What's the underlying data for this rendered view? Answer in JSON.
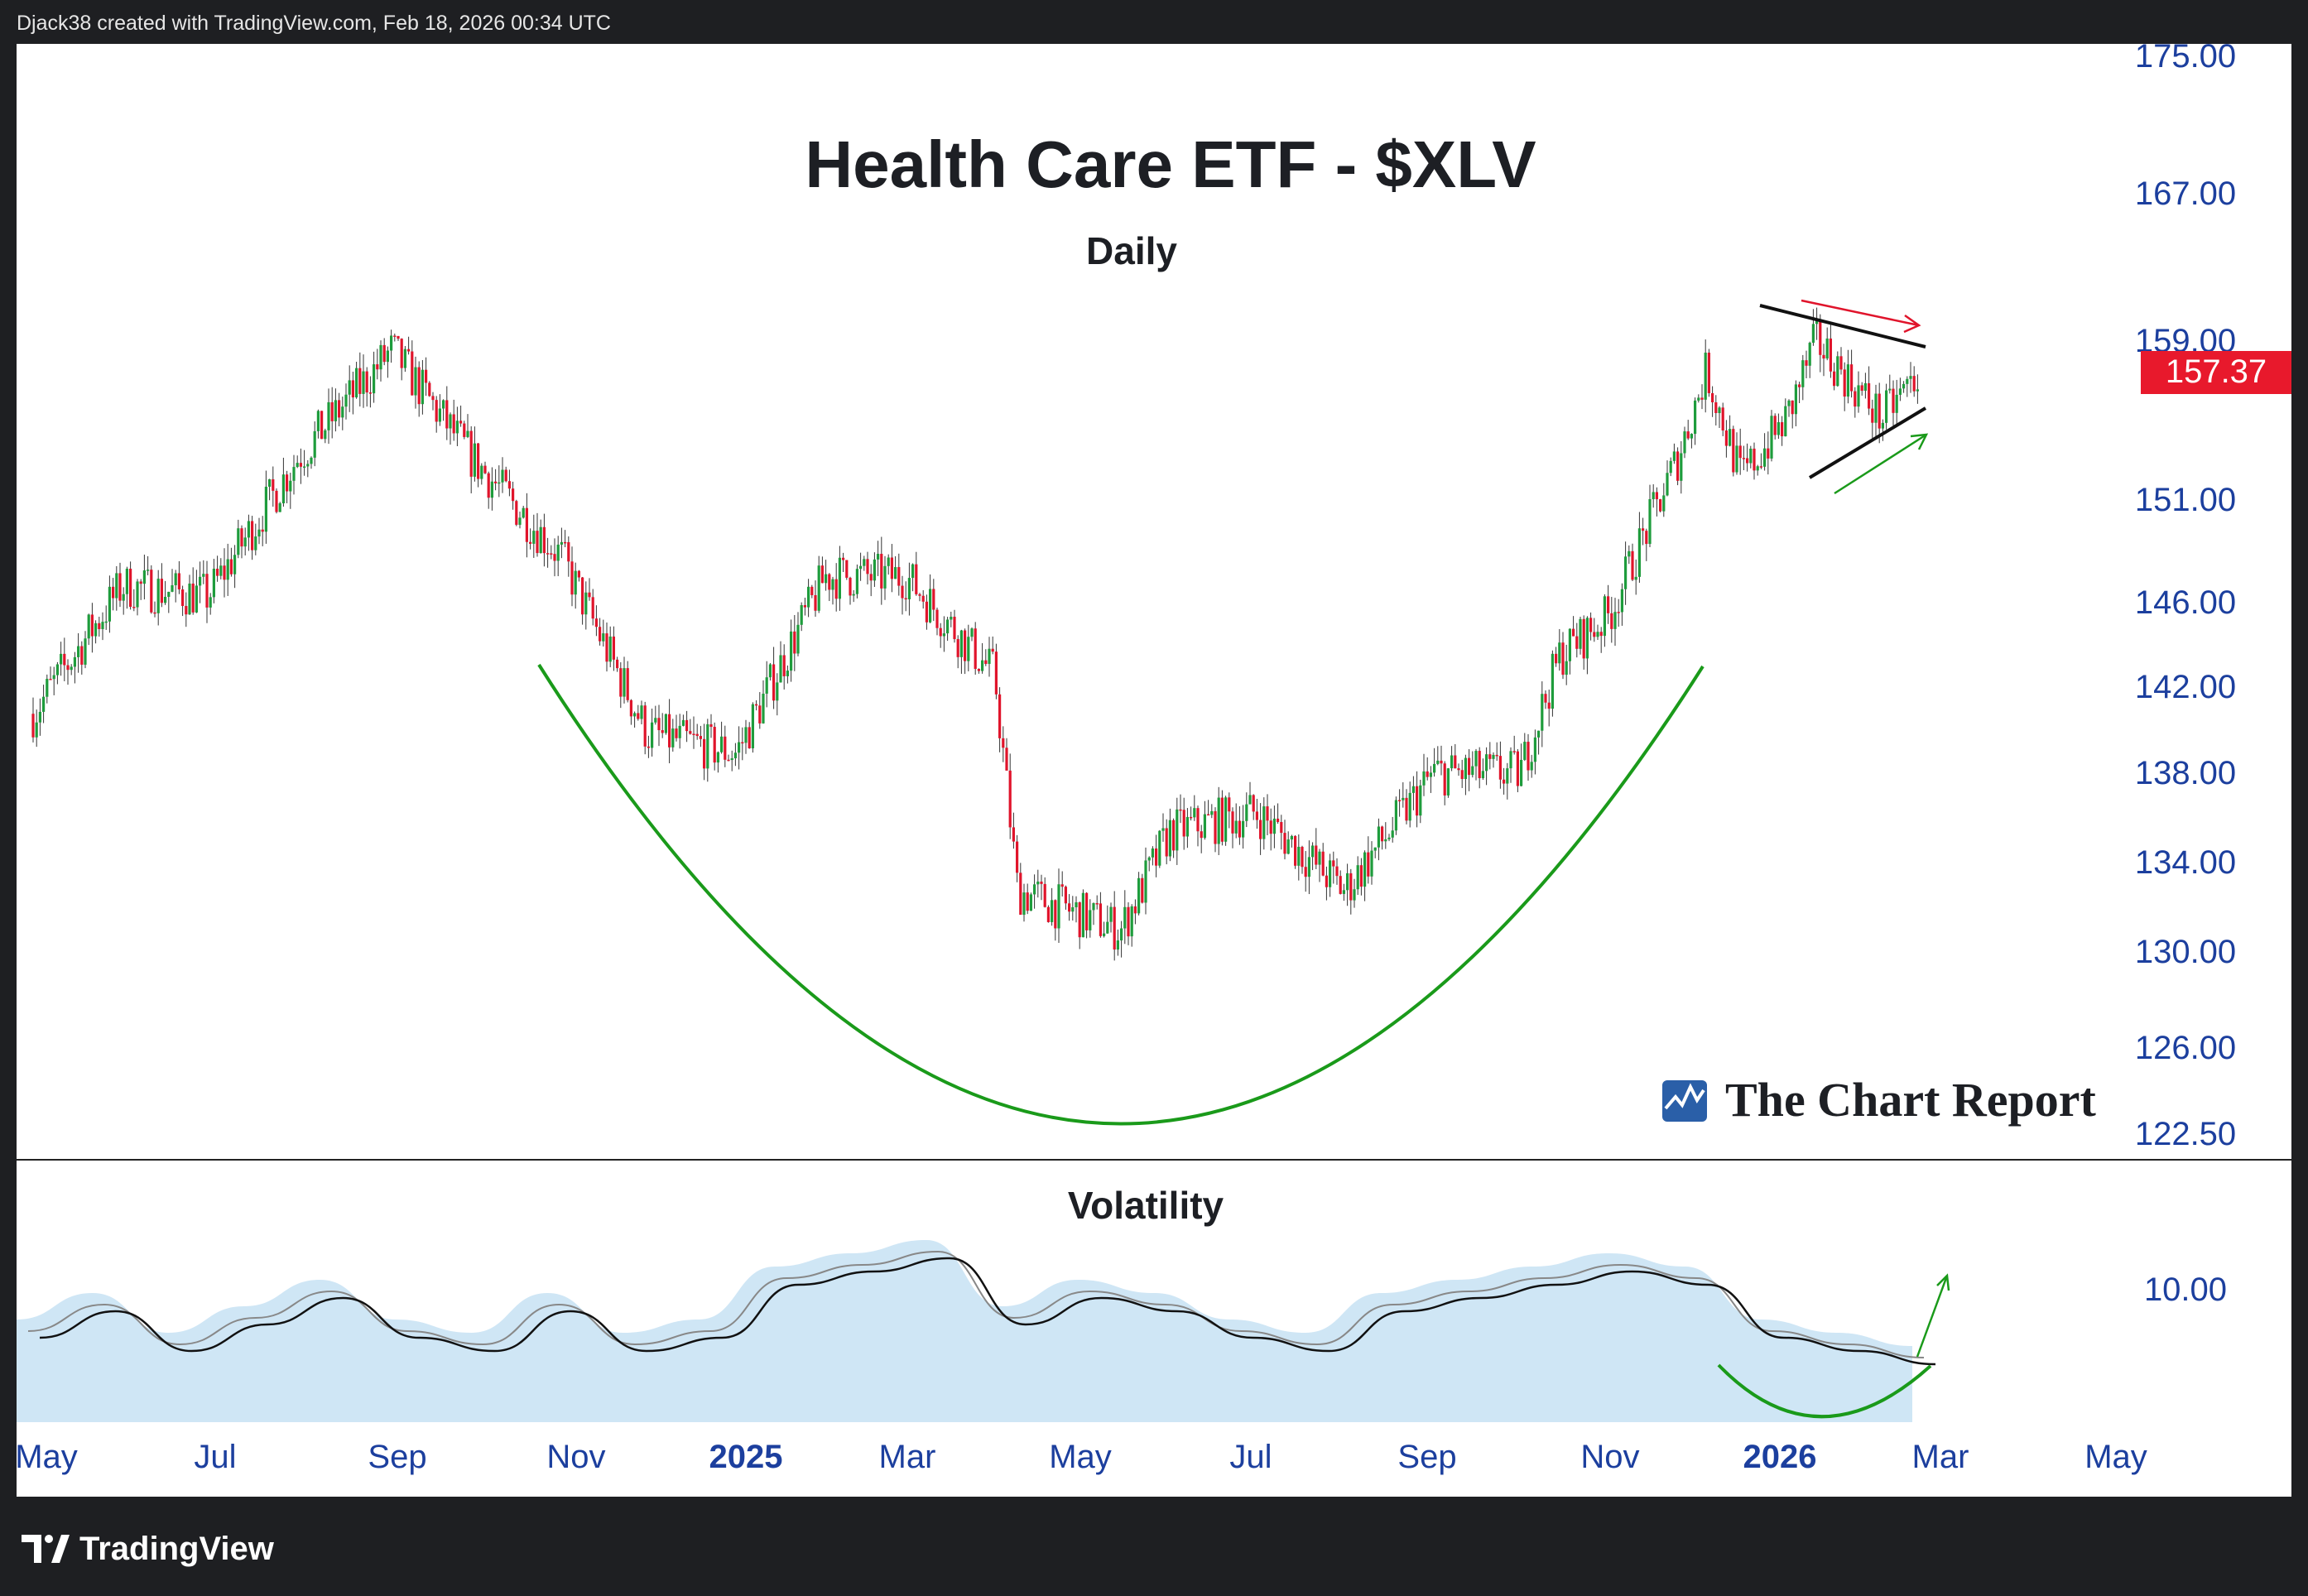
{
  "header": {
    "attribution": "Djack38 created with TradingView.com, Feb 18, 2026 00:34 UTC"
  },
  "footer": {
    "brand": "TradingView"
  },
  "watermark": {
    "brand": "The Chart Report"
  },
  "colors": {
    "up": "#1e9c3c",
    "down": "#e0142b",
    "axis_text": "#1c3f9e",
    "curve": "#1a9a1a",
    "price_badge": "#e8192c",
    "vol_fill": "#cfe6f5"
  },
  "chart_data": [
    {
      "type": "candlestick",
      "title": "Health Care ETF - $XLV",
      "subtitle": "Daily",
      "y_axis_ticks": [
        "175.00",
        "167.00",
        "159.00",
        "151.00",
        "146.00",
        "142.00",
        "138.00",
        "134.00",
        "130.00",
        "126.00",
        "122.50"
      ],
      "last_price": "157.37",
      "x_axis_ticks": [
        "May",
        "Jul",
        "Sep",
        "Nov",
        "2025",
        "Mar",
        "May",
        "Jul",
        "Sep",
        "Nov",
        "2026",
        "Mar",
        "May"
      ],
      "annotations": [
        {
          "type": "rounding-bottom-curve",
          "color": "green"
        },
        {
          "type": "symmetrical-triangle",
          "upper_trendline": "descending",
          "lower_trendline": "ascending"
        },
        {
          "type": "arrow",
          "color": "red",
          "direction": "down-right"
        },
        {
          "type": "arrow",
          "color": "green",
          "direction": "up-right"
        }
      ],
      "key_points": [
        {
          "date": "2024-05-01",
          "close": 140
        },
        {
          "date": "2024-06-01",
          "close": 146.5
        },
        {
          "date": "2024-07-01",
          "close": 146
        },
        {
          "date": "2024-08-01",
          "close": 153
        },
        {
          "date": "2024-09-03",
          "close": 158.5
        },
        {
          "date": "2024-10-01",
          "close": 153
        },
        {
          "date": "2024-11-01",
          "close": 148
        },
        {
          "date": "2024-12-01",
          "close": 139
        },
        {
          "date": "2025-01-01",
          "close": 138
        },
        {
          "date": "2025-02-01",
          "close": 147
        },
        {
          "date": "2025-03-01",
          "close": 147
        },
        {
          "date": "2025-04-01",
          "close": 142
        },
        {
          "date": "2025-04-09",
          "close": 131
        },
        {
          "date": "2025-05-15",
          "close": 129
        },
        {
          "date": "2025-06-01",
          "close": 134
        },
        {
          "date": "2025-07-01",
          "close": 135
        },
        {
          "date": "2025-08-01",
          "close": 131
        },
        {
          "date": "2025-09-01",
          "close": 137
        },
        {
          "date": "2025-10-01",
          "close": 137
        },
        {
          "date": "2025-10-15",
          "close": 143
        },
        {
          "date": "2025-11-01",
          "close": 145
        },
        {
          "date": "2025-11-25",
          "close": 153
        },
        {
          "date": "2025-12-05",
          "close": 157.5
        },
        {
          "date": "2025-12-17",
          "close": 152
        },
        {
          "date": "2026-01-02",
          "close": 155
        },
        {
          "date": "2026-01-12",
          "close": 159
        },
        {
          "date": "2026-02-04",
          "close": 155
        },
        {
          "date": "2026-02-17",
          "close": 157.37
        }
      ]
    },
    {
      "type": "area",
      "title": "Volatility",
      "y_axis_ticks": [
        "10.00"
      ],
      "series": [
        {
          "values": [
            4,
            6,
            3,
            5,
            7,
            4,
            3,
            6,
            3,
            4,
            8,
            9,
            10,
            5,
            7,
            6,
            4,
            3,
            6,
            7,
            8,
            9,
            8,
            4,
            3,
            2
          ]
        }
      ]
    }
  ]
}
